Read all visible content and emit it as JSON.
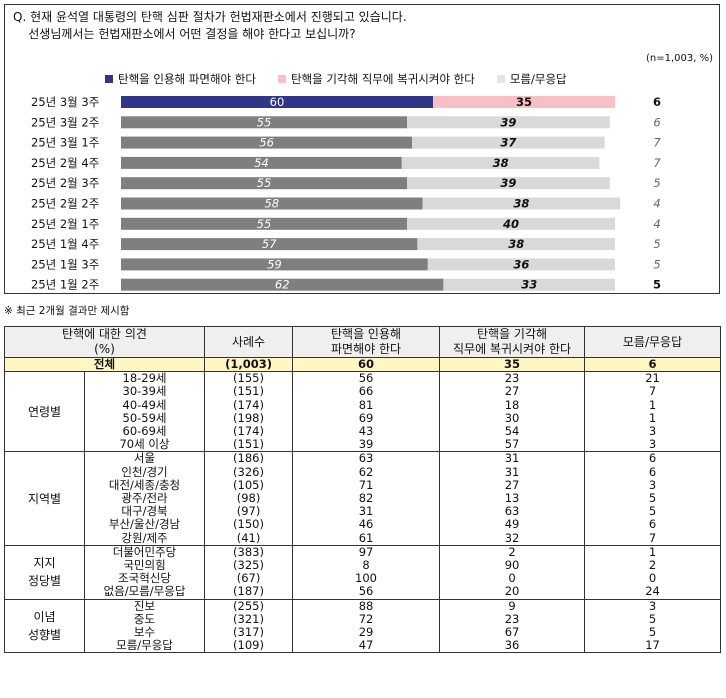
{
  "question": "Q. 현재 윤석열 대통령의 탄핵 심판 절차가 헌법재판소에서 진행되고 있습니다.\n    선생님께서는 헌법재판소에서 어떤 결정을 해야 한다고 보십니까?",
  "n_label": "(n=1,003,  %)",
  "colors": {
    "cite_latest": "#2e3685",
    "reject_latest": "#f8c0c6",
    "cite": "#7f7f7f",
    "reject": "#d9d9d9",
    "dk": "#ffffff"
  },
  "chart_data": {
    "type": "bar",
    "orientation": "horizontal-stacked",
    "categories": [
      "25년 3월 3주",
      "25년 3월 2주",
      "25년 3월 1주",
      "25년 2월 4주",
      "25년 2월 3주",
      "25년 2월 2주",
      "25년 2월 1주",
      "25년 1월 4주",
      "25년 1월 3주",
      "25년 1월 2주"
    ],
    "series": [
      {
        "name": "탄핵을 인용해 파면해야 한다",
        "values": [
          60,
          55,
          56,
          54,
          55,
          58,
          55,
          57,
          59,
          62
        ]
      },
      {
        "name": "탄핵을 기각해 직무에 복귀시켜야 한다",
        "values": [
          35,
          39,
          37,
          38,
          39,
          38,
          40,
          38,
          36,
          33
        ]
      },
      {
        "name": "모름/무응답",
        "values": [
          6,
          6,
          7,
          7,
          5,
          4,
          4,
          5,
          5,
          5
        ]
      }
    ],
    "xlim": [
      0,
      100
    ],
    "legend_position": "top"
  },
  "note": "※ 최근 2개월 결과만 제시함",
  "table": {
    "headers": [
      "탄핵에 대한 의견\n(%)",
      "사례수",
      "탄핵을 인용해\n파면해야 한다",
      "탄핵을 기각해\n직무에 복귀시켜야 한다",
      "모름/무응답"
    ],
    "total": {
      "label": "전체",
      "n": "(1,003)",
      "v1": "60",
      "v2": "35",
      "v3": "6"
    },
    "groups": [
      {
        "name": "연령별",
        "rows": [
          [
            "18-29세",
            "(155)",
            "56",
            "23",
            "21"
          ],
          [
            "30-39세",
            "(151)",
            "66",
            "27",
            "7"
          ],
          [
            "40-49세",
            "(174)",
            "81",
            "18",
            "1"
          ],
          [
            "50-59세",
            "(198)",
            "69",
            "30",
            "1"
          ],
          [
            "60-69세",
            "(174)",
            "43",
            "54",
            "3"
          ],
          [
            "70세 이상",
            "(151)",
            "39",
            "57",
            "3"
          ]
        ]
      },
      {
        "name": "지역별",
        "rows": [
          [
            "서울",
            "(186)",
            "63",
            "31",
            "6"
          ],
          [
            "인천/경기",
            "(326)",
            "62",
            "31",
            "6"
          ],
          [
            "대전/세종/충청",
            "(105)",
            "71",
            "27",
            "3"
          ],
          [
            "광주/전라",
            "(98)",
            "82",
            "13",
            "5"
          ],
          [
            "대구/경북",
            "(97)",
            "31",
            "63",
            "5"
          ],
          [
            "부산/울산/경남",
            "(150)",
            "46",
            "49",
            "6"
          ],
          [
            "강원/제주",
            "(41)",
            "61",
            "32",
            "7"
          ]
        ]
      },
      {
        "name": "지지\n정당별",
        "rows": [
          [
            "더불어민주당",
            "(383)",
            "97",
            "2",
            "1"
          ],
          [
            "국민의힘",
            "(325)",
            "8",
            "90",
            "2"
          ],
          [
            "조국혁신당",
            "(67)",
            "100",
            "0",
            "0"
          ],
          [
            "없음/모름/무응답",
            "(187)",
            "56",
            "20",
            "24"
          ]
        ]
      },
      {
        "name": "이념\n성향별",
        "rows": [
          [
            "진보",
            "(255)",
            "88",
            "9",
            "3"
          ],
          [
            "중도",
            "(321)",
            "72",
            "23",
            "5"
          ],
          [
            "보수",
            "(317)",
            "29",
            "67",
            "5"
          ],
          [
            "모름/무응답",
            "(109)",
            "47",
            "36",
            "17"
          ]
        ]
      }
    ]
  }
}
